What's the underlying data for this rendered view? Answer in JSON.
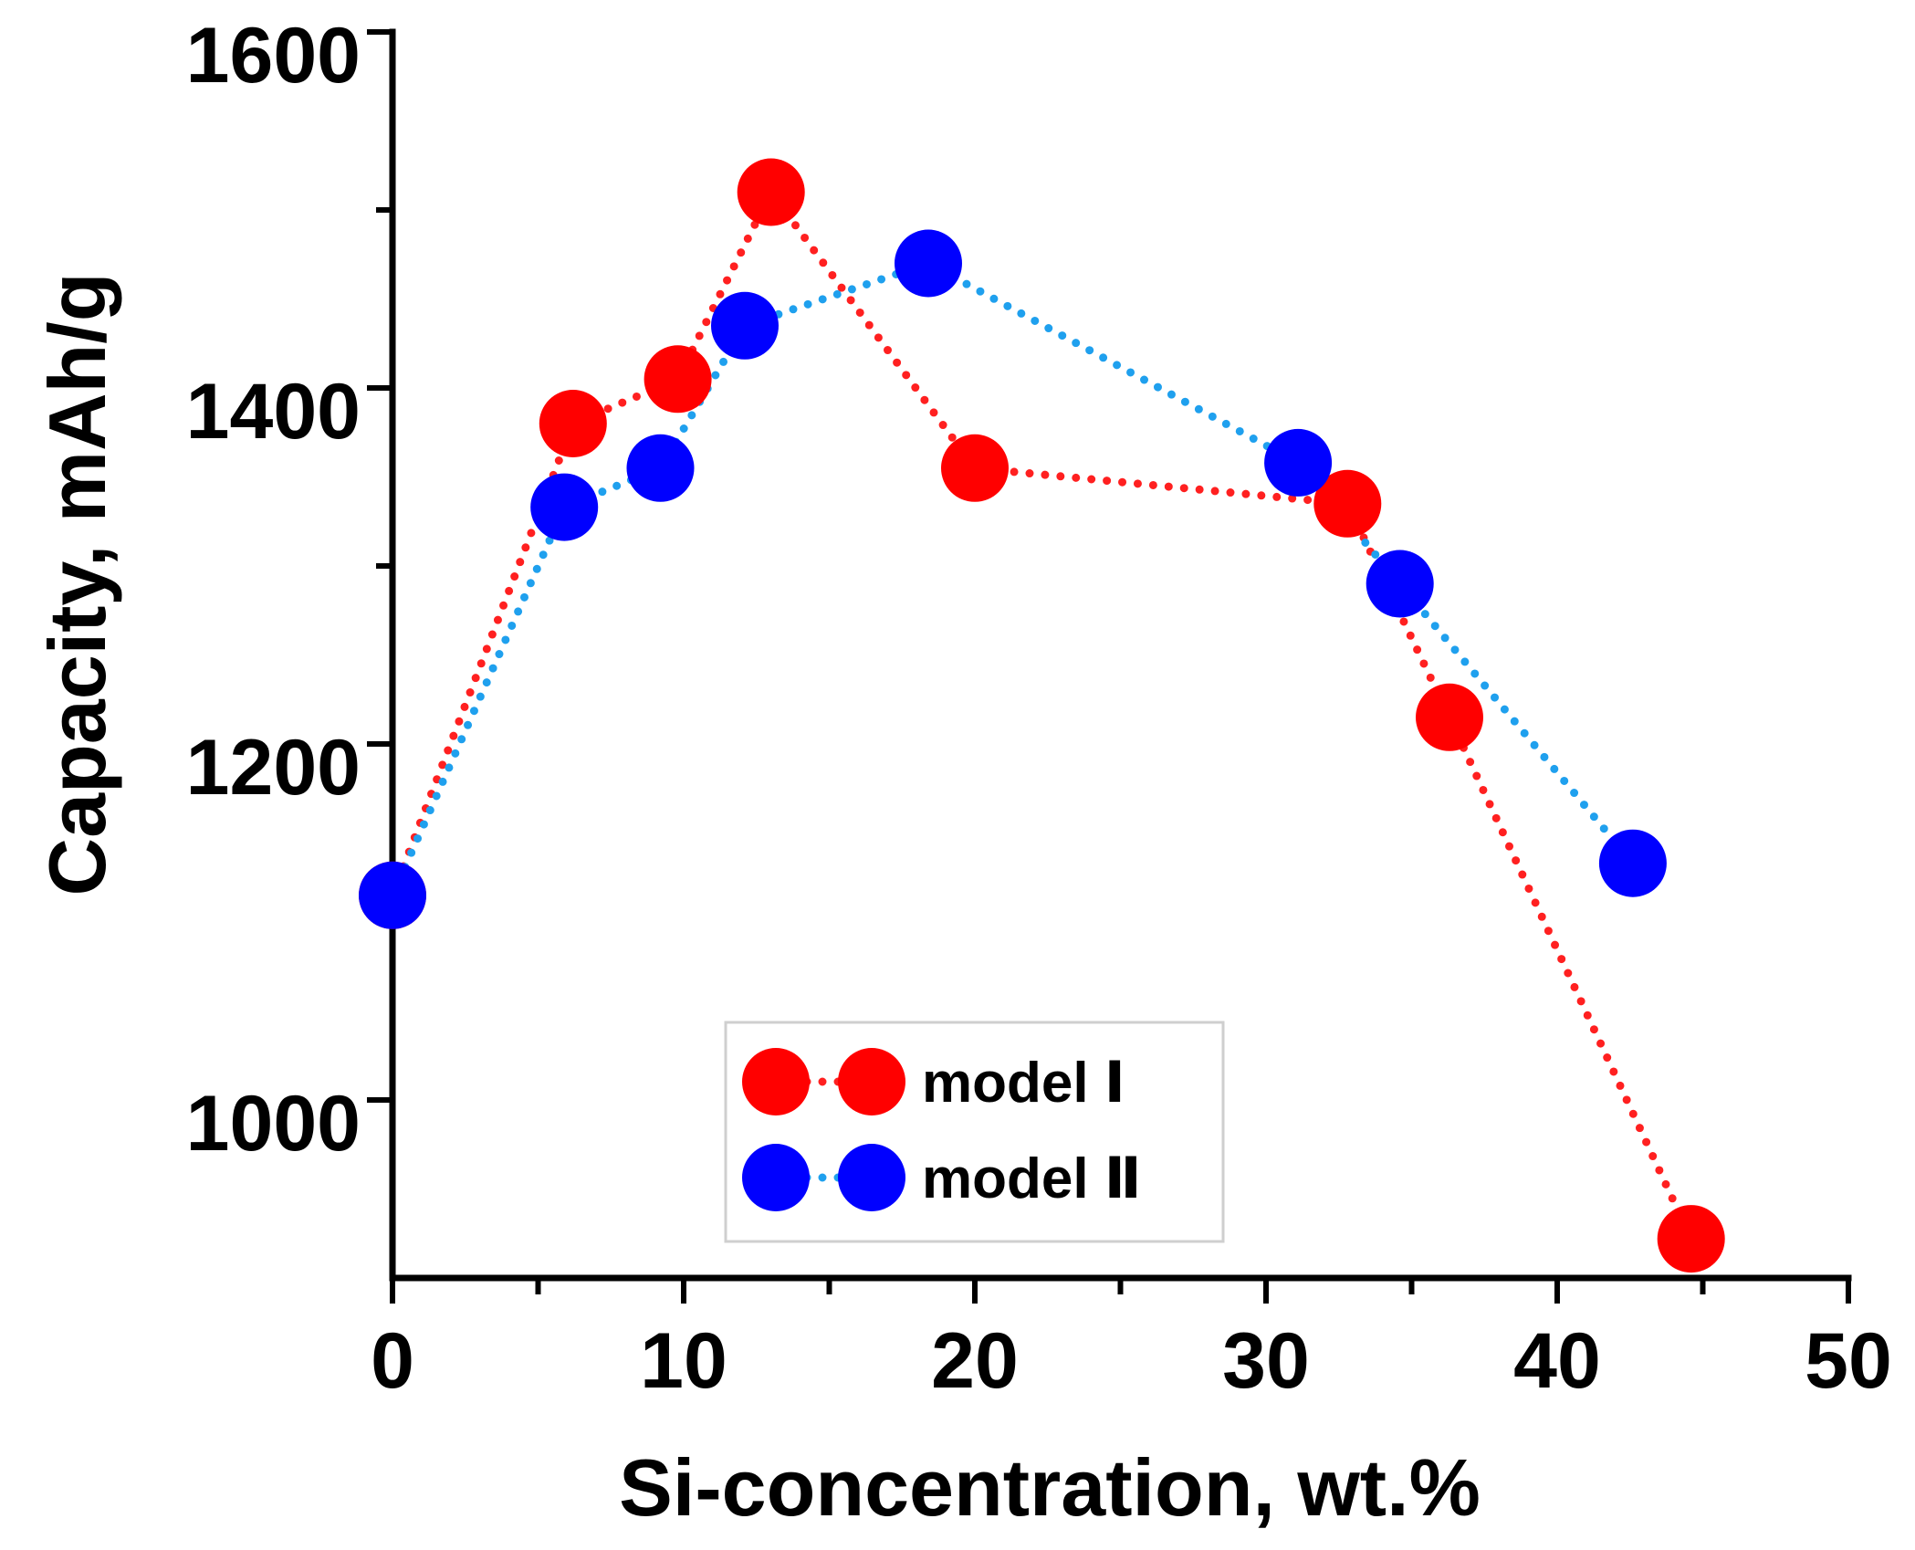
{
  "chart_data": {
    "type": "line",
    "title": "",
    "xlabel": "Si-concentration, wt.%",
    "ylabel": "Capacity, mAh/g",
    "xlim": [
      0,
      50
    ],
    "ylim": [
      900,
      1600
    ],
    "x_ticks": [
      0,
      10,
      20,
      30,
      40,
      50
    ],
    "x_tick_labels": [
      "0",
      "10",
      "20",
      "30",
      "40",
      "50"
    ],
    "y_ticks": [
      1000,
      1200,
      1400,
      1600
    ],
    "y_tick_labels": [
      "1000",
      "1200",
      "1400",
      "1600"
    ],
    "grid": false,
    "legend_position": "bottom-center",
    "series": [
      {
        "name": "model Ⅰ",
        "marker_color": "#ff0000",
        "line_color": "#ff2020",
        "line_style": "dotted",
        "x": [
          0,
          6.2,
          9.8,
          13.0,
          20.0,
          32.8,
          36.3,
          44.6
        ],
        "y": [
          1115,
          1380,
          1405,
          1510,
          1355,
          1335,
          1215,
          922
        ]
      },
      {
        "name": "model Ⅱ",
        "marker_color": "#0000ff",
        "line_color": "#1fa0ee",
        "line_style": "dotted",
        "x": [
          0,
          5.9,
          9.2,
          12.1,
          18.4,
          31.1,
          34.6,
          42.6
        ],
        "y": [
          1115,
          1333,
          1355,
          1435,
          1470,
          1358,
          1290,
          1133
        ]
      }
    ]
  }
}
